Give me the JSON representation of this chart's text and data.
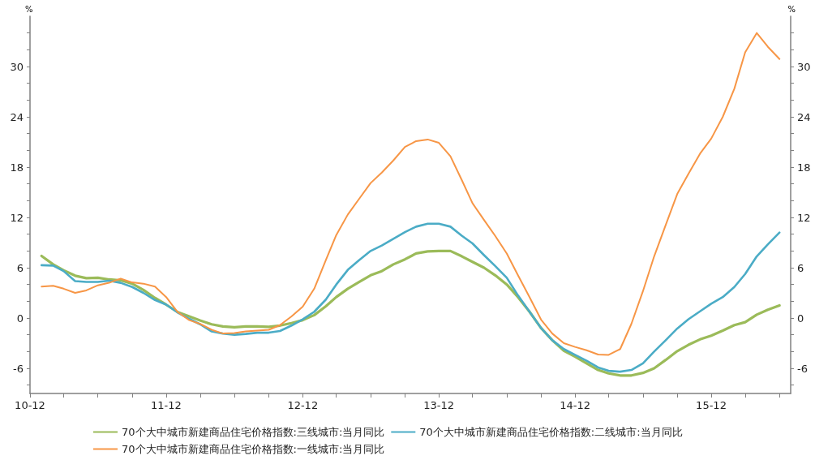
{
  "chart_data": {
    "type": "line",
    "ylabel": "%",
    "y2label": "%",
    "x": [
      "2011-01",
      "2011-02",
      "2011-03",
      "2011-04",
      "2011-05",
      "2011-06",
      "2011-07",
      "2011-08",
      "2011-09",
      "2011-10",
      "2011-11",
      "2011-12",
      "2012-01",
      "2012-02",
      "2012-03",
      "2012-04",
      "2012-05",
      "2012-06",
      "2012-07",
      "2012-08",
      "2012-09",
      "2012-10",
      "2012-11",
      "2012-12",
      "2013-01",
      "2013-02",
      "2013-03",
      "2013-04",
      "2013-05",
      "2013-06",
      "2013-07",
      "2013-08",
      "2013-09",
      "2013-10",
      "2013-11",
      "2013-12",
      "2014-01",
      "2014-02",
      "2014-03",
      "2014-04",
      "2014-05",
      "2014-06",
      "2014-07",
      "2014-08",
      "2014-09",
      "2014-10",
      "2014-11",
      "2014-12",
      "2015-01",
      "2015-02",
      "2015-03",
      "2015-04",
      "2015-05",
      "2015-06",
      "2015-07",
      "2015-08",
      "2015-09",
      "2015-10",
      "2015-11",
      "2015-12",
      "2016-01",
      "2016-02",
      "2016-03",
      "2016-04",
      "2016-05",
      "2016-06"
    ],
    "series": [
      {
        "name": "70个大中城市新建商品住宅价格指数:三线城市:当月同比",
        "color": "#9bbb59",
        "values": [
          7.4,
          6.4,
          5.7,
          5.05,
          4.75,
          4.8,
          4.6,
          4.5,
          4.1,
          3.35,
          2.4,
          1.6,
          0.7,
          0.2,
          -0.3,
          -0.75,
          -1.0,
          -1.1,
          -1.0,
          -1.0,
          -1.05,
          -0.9,
          -0.6,
          -0.25,
          0.35,
          1.4,
          2.5,
          3.5,
          4.3,
          5.1,
          5.6,
          6.4,
          7.0,
          7.7,
          7.95,
          8.0,
          8.0,
          7.35,
          6.7,
          6.0,
          5.1,
          4.0,
          2.5,
          0.75,
          -1.2,
          -2.65,
          -3.9,
          -4.6,
          -5.4,
          -6.2,
          -6.6,
          -6.85,
          -6.85,
          -6.55,
          -6.0,
          -5.0,
          -3.95,
          -3.2,
          -2.55,
          -2.1,
          -1.5,
          -0.85,
          -0.5,
          0.4,
          1.0,
          1.5
        ]
      },
      {
        "name": "70个大中城市新建商品住宅价格指数:二线城市:当月同比",
        "color": "#4bacc6",
        "values": [
          6.3,
          6.25,
          5.6,
          4.4,
          4.3,
          4.3,
          4.45,
          4.2,
          3.7,
          3.0,
          2.15,
          1.6,
          0.65,
          -0.1,
          -0.75,
          -1.6,
          -1.85,
          -2.0,
          -1.9,
          -1.75,
          -1.75,
          -1.55,
          -0.9,
          -0.15,
          0.75,
          2.2,
          4.0,
          5.75,
          6.9,
          8.0,
          8.65,
          9.45,
          10.25,
          10.9,
          11.25,
          11.25,
          10.9,
          9.8,
          8.9,
          7.5,
          6.2,
          4.8,
          2.7,
          0.75,
          -1.2,
          -2.65,
          -3.7,
          -4.4,
          -5.1,
          -5.9,
          -6.3,
          -6.4,
          -6.2,
          -5.4,
          -4.0,
          -2.65,
          -1.25,
          -0.15,
          0.8,
          1.7,
          2.5,
          3.7,
          5.25,
          7.35,
          8.8,
          10.2
        ]
      },
      {
        "name": "70个大中城市新建商品住宅价格指数:一线城市:当月同比",
        "color": "#f79646",
        "values": [
          3.75,
          3.85,
          3.5,
          3.0,
          3.3,
          3.9,
          4.2,
          4.7,
          4.25,
          4.1,
          3.75,
          2.5,
          0.7,
          -0.25,
          -0.7,
          -1.4,
          -1.85,
          -1.8,
          -1.6,
          -1.5,
          -1.4,
          -0.85,
          0.2,
          1.35,
          3.5,
          6.9,
          9.9,
          12.35,
          14.2,
          16.1,
          17.35,
          18.8,
          20.4,
          21.1,
          21.3,
          20.9,
          19.3,
          16.4,
          13.7,
          11.7,
          9.8,
          7.7,
          5.1,
          2.5,
          -0.2,
          -1.85,
          -3.0,
          -3.45,
          -3.85,
          -4.35,
          -4.4,
          -3.7,
          -0.7,
          3.2,
          7.35,
          11.1,
          14.8,
          17.2,
          19.6,
          21.4,
          24.0,
          27.35,
          31.7,
          34.0,
          32.35,
          30.9
        ]
      }
    ],
    "xlim": [
      "2010-12",
      "2016-07"
    ],
    "xticks": [
      {
        "value": "2010-12",
        "label": "10-12"
      },
      {
        "value": "2011-03",
        "label": null
      },
      {
        "value": "2011-06",
        "label": null
      },
      {
        "value": "2011-09",
        "label": null
      },
      {
        "value": "2011-12",
        "label": "11-12"
      },
      {
        "value": "2012-03",
        "label": null
      },
      {
        "value": "2012-06",
        "label": null
      },
      {
        "value": "2012-09",
        "label": null
      },
      {
        "value": "2012-12",
        "label": "12-12"
      },
      {
        "value": "2013-03",
        "label": null
      },
      {
        "value": "2013-06",
        "label": null
      },
      {
        "value": "2013-09",
        "label": null
      },
      {
        "value": "2013-12",
        "label": "13-12"
      },
      {
        "value": "2014-03",
        "label": null
      },
      {
        "value": "2014-06",
        "label": null
      },
      {
        "value": "2014-09",
        "label": null
      },
      {
        "value": "2014-12",
        "label": "14-12"
      },
      {
        "value": "2015-03",
        "label": null
      },
      {
        "value": "2015-06",
        "label": null
      },
      {
        "value": "2015-09",
        "label": null
      },
      {
        "value": "2015-12",
        "label": "15-12"
      },
      {
        "value": "2016-03",
        "label": null
      },
      {
        "value": "2016-06",
        "label": null
      }
    ],
    "ylim": [
      -9,
      36
    ],
    "yticks": [
      {
        "value": -8,
        "label": null
      },
      -6,
      {
        "value": -4,
        "label": null
      },
      {
        "value": -2,
        "label": null
      },
      0,
      {
        "value": 2,
        "label": null
      },
      {
        "value": 4,
        "label": null
      },
      6,
      {
        "value": 8,
        "label": null
      },
      {
        "value": 10,
        "label": null
      },
      12,
      {
        "value": 14,
        "label": null
      },
      {
        "value": 16,
        "label": null
      },
      18,
      {
        "value": 20,
        "label": null
      },
      {
        "value": 22,
        "label": null
      },
      24,
      {
        "value": 26,
        "label": null
      },
      {
        "value": 28,
        "label": null
      },
      30,
      {
        "value": 32,
        "label": null
      },
      {
        "value": 34,
        "label": null
      }
    ],
    "y2lim": [
      -9,
      36
    ],
    "y2ticks": [
      {
        "value": -8,
        "label": null
      },
      -6,
      {
        "value": -4,
        "label": null
      },
      {
        "value": -2,
        "label": null
      },
      0,
      {
        "value": 2,
        "label": null
      },
      {
        "value": 4,
        "label": null
      },
      6,
      {
        "value": 8,
        "label": null
      },
      {
        "value": 10,
        "label": null
      },
      12,
      {
        "value": 14,
        "label": null
      },
      {
        "value": 16,
        "label": null
      },
      18,
      {
        "value": 20,
        "label": null
      },
      {
        "value": 22,
        "label": null
      },
      24,
      {
        "value": 26,
        "label": null
      },
      {
        "value": 28,
        "label": null
      },
      30,
      {
        "value": 32,
        "label": null
      },
      {
        "value": 34,
        "label": null
      }
    ],
    "grid": false,
    "legend": "bottom",
    "marker": "none",
    "line_style": "solid"
  }
}
